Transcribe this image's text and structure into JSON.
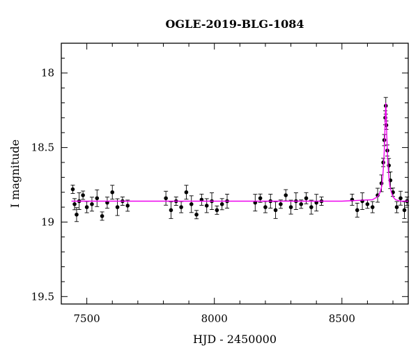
{
  "chart_data": {
    "type": "scatter",
    "title": "OGLE-2019-BLG-1084",
    "xlabel": "HJD - 2450000",
    "ylabel": "I magnitude",
    "xlim": [
      7400,
      8760
    ],
    "ylim": [
      19.55,
      17.8
    ],
    "y_inverted": true,
    "xticks": [
      7500,
      8000,
      8500
    ],
    "yticks": [
      18,
      18.5,
      19,
      19.5
    ],
    "grid": false,
    "colors": {
      "data": "#000000",
      "model": "#ee00ee",
      "frame": "#000000"
    },
    "seasons": [
      {
        "x_start": 7440,
        "x_end": 7670,
        "mean_mag": 18.88
      },
      {
        "x_start": 7800,
        "x_end": 8050,
        "mean_mag": 18.88
      },
      {
        "x_start": 8150,
        "x_end": 8420,
        "mean_mag": 18.88
      },
      {
        "x_start": 8530,
        "x_end": 8755,
        "mean_mag": 18.88
      }
    ],
    "series": [
      {
        "kind": "model",
        "baseline_mag": 18.86,
        "t0": 8672,
        "peak_mag": 18.2,
        "tE_days": 14,
        "x": [
          7440,
          8500,
          8620,
          8640,
          8650,
          8656,
          8660,
          8664,
          8666,
          8668,
          8670,
          8672,
          8674,
          8676,
          8678,
          8680,
          8684,
          8688,
          8694,
          8700,
          8710,
          8730,
          8760
        ],
        "y": [
          18.86,
          18.86,
          18.85,
          18.83,
          18.8,
          18.76,
          18.7,
          18.6,
          18.52,
          18.42,
          18.3,
          18.2,
          18.3,
          18.42,
          18.52,
          18.6,
          18.7,
          18.76,
          18.8,
          18.83,
          18.85,
          18.86,
          18.86
        ]
      },
      {
        "kind": "data",
        "x": [
          7445,
          7452,
          7460,
          7470,
          7485,
          7500,
          7520,
          7540,
          7560,
          7580,
          7600,
          7620,
          7640,
          7660,
          7810,
          7830,
          7850,
          7870,
          7890,
          7910,
          7930,
          7950,
          7970,
          7990,
          8010,
          8030,
          8050,
          8160,
          8180,
          8200,
          8220,
          8240,
          8260,
          8280,
          8300,
          8320,
          8340,
          8360,
          8380,
          8400,
          8420,
          8540,
          8560,
          8580,
          8600,
          8620,
          8640,
          8655,
          8662,
          8666,
          8670,
          8672,
          8674,
          8678,
          8684,
          8690,
          8700,
          8715,
          8730,
          8745,
          8755
        ],
        "y": [
          18.78,
          18.88,
          18.95,
          18.86,
          18.82,
          18.9,
          18.88,
          18.84,
          18.96,
          18.87,
          18.8,
          18.9,
          18.86,
          18.89,
          18.84,
          18.92,
          18.86,
          18.9,
          18.8,
          18.88,
          18.95,
          18.85,
          18.89,
          18.86,
          18.92,
          18.88,
          18.86,
          18.87,
          18.84,
          18.9,
          18.86,
          18.92,
          18.88,
          18.82,
          18.9,
          18.86,
          18.88,
          18.84,
          18.9,
          18.87,
          18.86,
          18.85,
          18.92,
          18.86,
          18.88,
          18.9,
          18.82,
          18.74,
          18.6,
          18.45,
          18.3,
          18.22,
          18.35,
          18.52,
          18.62,
          18.72,
          18.8,
          18.9,
          18.84,
          18.92,
          18.86
        ]
      }
    ]
  }
}
